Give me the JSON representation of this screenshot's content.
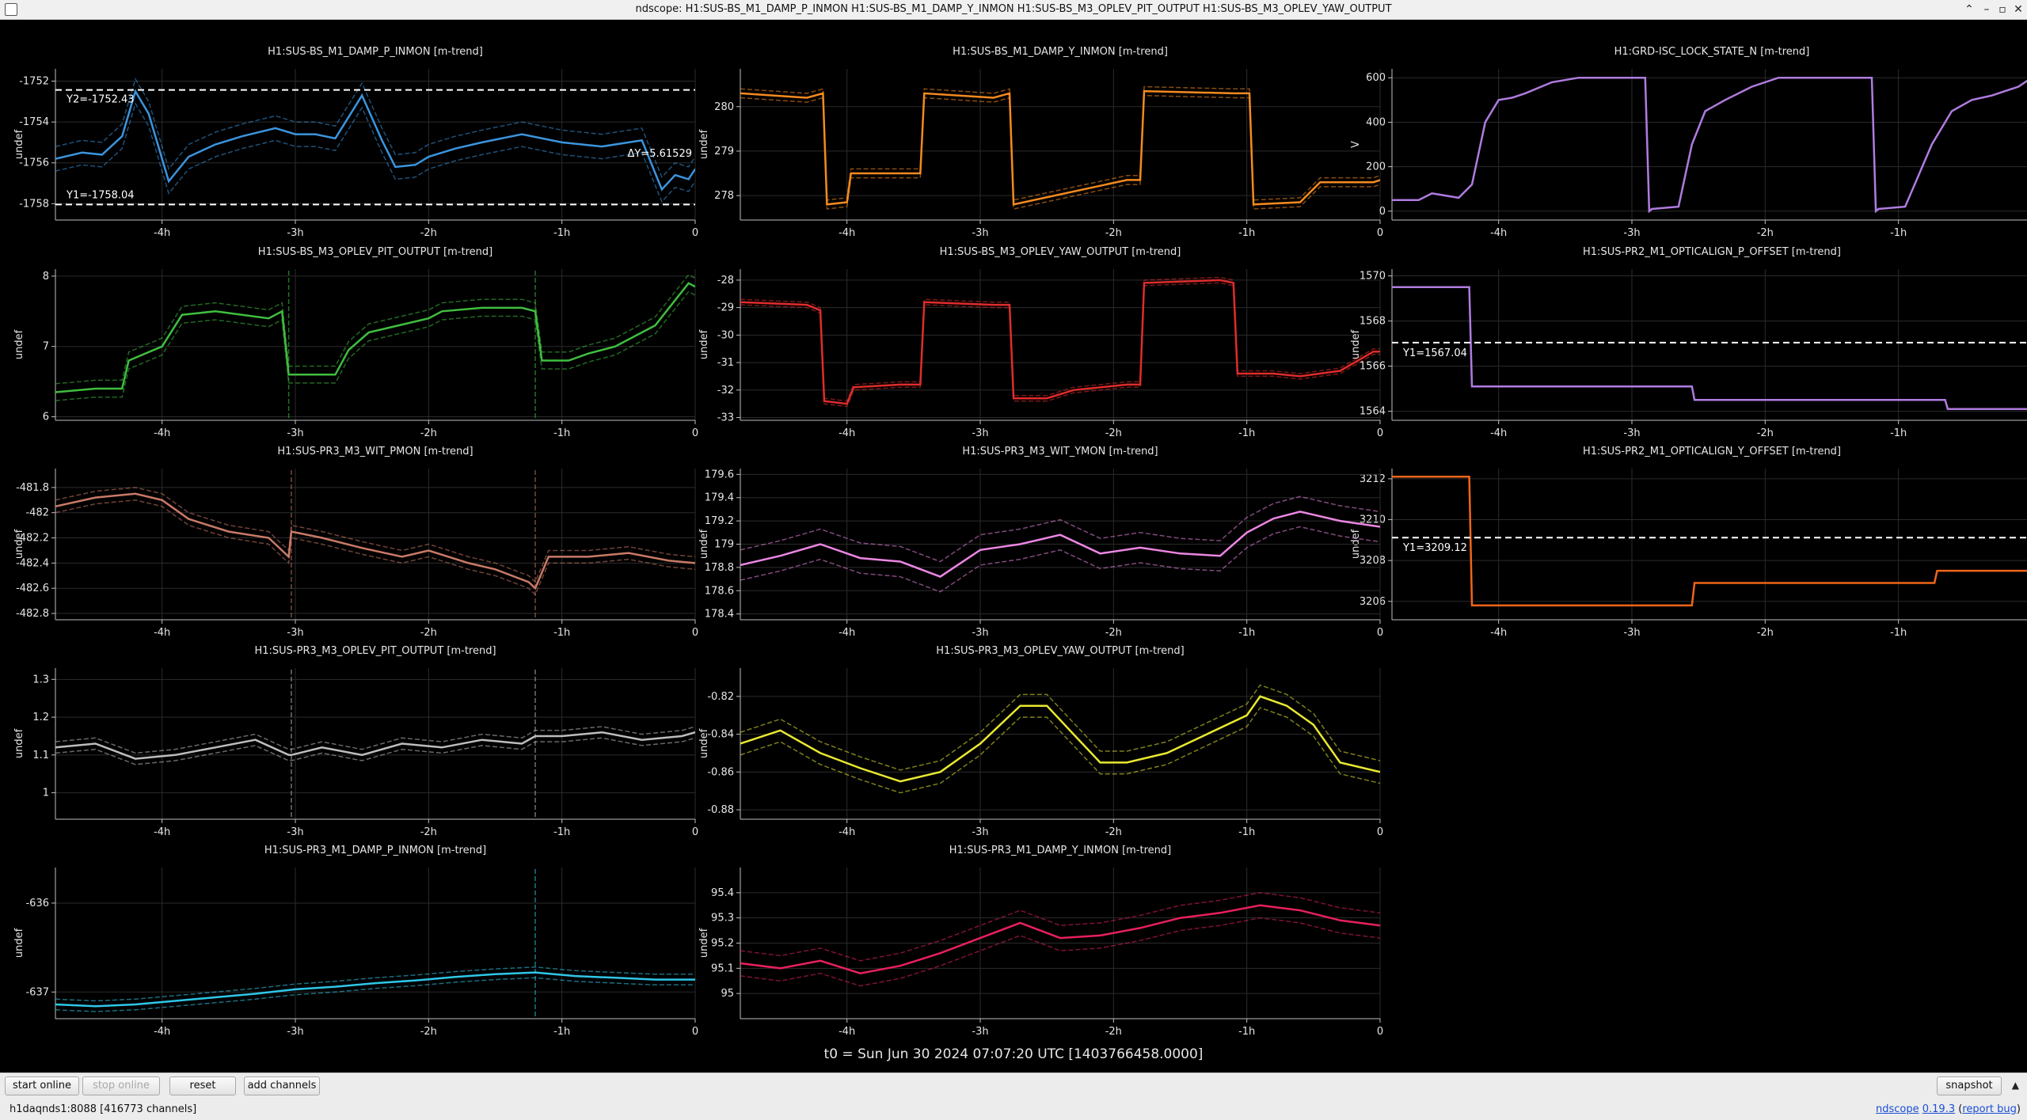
{
  "window": {
    "title": "ndscope: H1:SUS-BS_M1_DAMP_P_INMON H1:SUS-BS_M1_DAMP_Y_INMON H1:SUS-BS_M3_OPLEV_PIT_OUTPUT H1:SUS-BS_M3_OPLEV_YAW_OUTPUT",
    "buttons": {
      "shade": "⌃",
      "minimize": "–",
      "maximize": "▫",
      "close": "✕"
    }
  },
  "x_ticks": [
    "-4h",
    "-3h",
    "-2h",
    "-1h",
    "0"
  ],
  "colors": {
    "background": "#000000",
    "grid": "#2b2b2b",
    "axis": "#bfbfbf",
    "cursor": "#ffffff"
  },
  "t0_label": "t0 = Sun Jun 30 2024 07:07:20 UTC [1403766458.0000]",
  "controls": {
    "start_online": "start online",
    "stop_online": "stop online",
    "reset": "reset",
    "add_channels": "add channels",
    "snapshot": "snapshot",
    "menu_icon": "chevron-up-icon"
  },
  "status": {
    "server": "h1daqnds1:8088",
    "channels": "[416773 channels]",
    "app_name": "ndscope",
    "version": "0.19.3",
    "report_bug": "report bug"
  },
  "chart_data": [
    {
      "type": "line",
      "title": "H1:SUS-BS_M1_DAMP_P_INMON [m-trend]",
      "ylabel": "undef",
      "color": "#3b94dd",
      "ylim": [
        -1758.8,
        -1751.4
      ],
      "y_ticks": [
        -1752,
        -1754,
        -1756,
        -1758
      ],
      "x": [
        -4.8,
        -4.6,
        -4.45,
        -4.3,
        -4.2,
        -4.1,
        -3.95,
        -3.8,
        -3.6,
        -3.4,
        -3.15,
        -3.0,
        -2.85,
        -2.7,
        -2.5,
        -2.35,
        -2.25,
        -2.1,
        -2.0,
        -1.8,
        -1.6,
        -1.3,
        -1.0,
        -0.7,
        -0.4,
        -0.25,
        -0.15,
        -0.05,
        0
      ],
      "y": [
        -1755.8,
        -1755.5,
        -1755.6,
        -1754.7,
        -1752.5,
        -1753.6,
        -1756.9,
        -1755.7,
        -1755.1,
        -1754.7,
        -1754.3,
        -1754.6,
        -1754.6,
        -1754.8,
        -1752.7,
        -1754.9,
        -1756.2,
        -1756.1,
        -1755.7,
        -1755.3,
        -1755.0,
        -1754.6,
        -1755.0,
        -1755.2,
        -1754.9,
        -1757.3,
        -1756.6,
        -1756.8,
        -1756.3
      ],
      "band": 0.6,
      "cursors": [
        {
          "label": "Y2=-1752.43",
          "y": -1752.43
        },
        {
          "label": "Y1=-1758.04",
          "y": -1758.04
        },
        {
          "label": "ΔY=5.61529"
        }
      ]
    },
    {
      "type": "line",
      "title": "H1:SUS-BS_M1_DAMP_Y_INMON [m-trend]",
      "ylabel": "undef",
      "color": "#f58a1f",
      "ylim": [
        277.45,
        280.85
      ],
      "y_ticks": [
        280,
        279,
        278
      ],
      "x": [
        -4.8,
        -4.3,
        -4.18,
        -4.15,
        -4.0,
        -3.97,
        -3.6,
        -3.45,
        -3.42,
        -2.9,
        -2.78,
        -2.75,
        -1.9,
        -1.8,
        -1.77,
        -1.1,
        -0.98,
        -0.95,
        -0.6,
        -0.45,
        -0.42,
        -0.05,
        0
      ],
      "y": [
        280.3,
        280.2,
        280.3,
        277.8,
        277.85,
        278.5,
        278.5,
        278.5,
        280.3,
        280.2,
        280.3,
        277.8,
        278.35,
        278.35,
        280.35,
        280.3,
        280.3,
        277.8,
        277.85,
        278.3,
        278.3,
        278.3,
        278.35
      ],
      "band": 0.1
    },
    {
      "type": "line",
      "title": "H1:GRD-ISC_LOCK_STATE_N [m-trend]",
      "ylabel": "V",
      "color": "#b07ce0",
      "ylim": [
        -40,
        640
      ],
      "y_ticks": [
        600,
        400,
        200,
        0
      ],
      "x": [
        -4.8,
        -4.6,
        -4.5,
        -4.3,
        -4.2,
        -4.1,
        -4.0,
        -3.9,
        -3.8,
        -3.6,
        -3.4,
        -2.9,
        -2.87,
        -2.85,
        -2.65,
        -2.55,
        -2.45,
        -2.3,
        -2.1,
        -1.9,
        -1.2,
        -1.17,
        -1.15,
        -0.95,
        -0.75,
        -0.6,
        -0.45,
        -0.3,
        -0.1,
        0
      ],
      "y": [
        50,
        50,
        80,
        60,
        120,
        400,
        500,
        510,
        530,
        580,
        600,
        600,
        0,
        10,
        20,
        300,
        450,
        500,
        560,
        600,
        600,
        0,
        10,
        20,
        300,
        450,
        500,
        520,
        560,
        600
      ],
      "band": 0
    },
    {
      "type": "line",
      "title": "H1:SUS-BS_M3_OPLEV_PIT_OUTPUT [m-trend]",
      "ylabel": "undef",
      "color": "#3fbe3f",
      "ylim": [
        5.95,
        8.1
      ],
      "y_ticks": [
        8,
        7,
        6
      ],
      "x": [
        -4.8,
        -4.5,
        -4.3,
        -4.25,
        -4.0,
        -3.85,
        -3.6,
        -3.2,
        -3.1,
        -3.05,
        -2.85,
        -2.7,
        -2.6,
        -2.45,
        -2.0,
        -1.9,
        -1.6,
        -1.3,
        -1.2,
        -1.15,
        -0.95,
        -0.8,
        -0.6,
        -0.3,
        -0.05,
        0
      ],
      "y": [
        6.35,
        6.4,
        6.4,
        6.8,
        7.0,
        7.45,
        7.5,
        7.4,
        7.5,
        6.6,
        6.6,
        6.6,
        6.95,
        7.2,
        7.4,
        7.5,
        7.55,
        7.55,
        7.5,
        6.8,
        6.8,
        6.9,
        7.0,
        7.3,
        7.9,
        7.85
      ],
      "band": 0.12,
      "spikes": [
        -3.05,
        -1.2
      ]
    },
    {
      "type": "line",
      "title": "H1:SUS-BS_M3_OPLEV_YAW_OUTPUT [m-trend]",
      "ylabel": "undef",
      "color": "#e02c2c",
      "ylim": [
        -33.1,
        -27.6
      ],
      "y_ticks": [
        -28,
        -29,
        -30,
        -31,
        -32,
        -33
      ],
      "x": [
        -4.8,
        -4.3,
        -4.2,
        -4.17,
        -4.0,
        -3.95,
        -3.6,
        -3.45,
        -3.42,
        -2.9,
        -2.78,
        -2.75,
        -2.5,
        -2.3,
        -1.9,
        -1.8,
        -1.77,
        -1.2,
        -1.1,
        -1.07,
        -0.9,
        -0.8,
        -0.6,
        -0.3,
        -0.05,
        0
      ],
      "y": [
        -28.8,
        -28.9,
        -29.1,
        -32.4,
        -32.5,
        -31.9,
        -31.8,
        -31.8,
        -28.8,
        -28.9,
        -28.9,
        -32.3,
        -32.3,
        -32.0,
        -31.8,
        -31.8,
        -28.1,
        -28.0,
        -28.1,
        -31.4,
        -31.4,
        -31.4,
        -31.5,
        -31.3,
        -30.6,
        -30.6
      ],
      "band": 0.1
    },
    {
      "type": "line",
      "title": "H1:SUS-PR2_M1_OPTICALIGN_P_OFFSET [m-trend]",
      "ylabel": "undef",
      "color": "#b07ce0",
      "ylim": [
        1563.6,
        1570.3
      ],
      "y_ticks": [
        1570,
        1568,
        1566,
        1564
      ],
      "x": [
        -4.8,
        -4.22,
        -4.2,
        -2.55,
        -2.53,
        -0.65,
        -0.63,
        0
      ],
      "y": [
        1569.5,
        1569.5,
        1565.1,
        1565.1,
        1564.5,
        1564.5,
        1564.1,
        1564.1
      ],
      "band": 0,
      "cursors": [
        {
          "label": "Y1=1567.04",
          "y": 1567.04
        }
      ]
    },
    {
      "type": "line",
      "title": "H1:SUS-PR2_M1_OPTICALIGN_Y_OFFSET [m-trend]",
      "ylabel": "undef",
      "color": "#f0651a",
      "ylim": [
        3205.1,
        3212.5
      ],
      "y_ticks": [
        3212,
        3210,
        3208,
        3206
      ],
      "x": [
        -4.8,
        -4.22,
        -4.2,
        -2.55,
        -2.53,
        -0.73,
        -0.71,
        0
      ],
      "y": [
        3212.1,
        3212.1,
        3205.8,
        3205.8,
        3206.9,
        3206.9,
        3207.5,
        3207.5
      ],
      "band": 0,
      "cursors": [
        {
          "label": "Y1=3209.12",
          "y": 3209.12
        }
      ]
    },
    {
      "type": "line",
      "title": "H1:SUS-PR3_M3_WIT_PMON [m-trend]",
      "ylabel": "undef",
      "color": "#c97a68",
      "ylim": [
        -482.85,
        -481.65
      ],
      "y_ticks": [
        -481.8,
        -482,
        -482.2,
        -482.4,
        -482.6,
        -482.8
      ],
      "x": [
        -4.8,
        -4.5,
        -4.2,
        -4.0,
        -3.8,
        -3.5,
        -3.2,
        -3.05,
        -3.03,
        -2.8,
        -2.5,
        -2.2,
        -2.0,
        -1.7,
        -1.5,
        -1.25,
        -1.2,
        -1.1,
        -0.8,
        -0.5,
        -0.2,
        0
      ],
      "y": [
        -481.95,
        -481.88,
        -481.85,
        -481.9,
        -482.05,
        -482.15,
        -482.2,
        -482.35,
        -482.15,
        -482.2,
        -482.28,
        -482.35,
        -482.3,
        -482.4,
        -482.45,
        -482.55,
        -482.6,
        -482.35,
        -482.35,
        -482.32,
        -482.38,
        -482.4
      ],
      "band": 0.05,
      "spikes": [
        -3.03,
        -1.2
      ]
    },
    {
      "type": "line",
      "title": "H1:SUS-PR3_M3_WIT_YMON [m-trend]",
      "ylabel": "undef",
      "color": "#ec86e3",
      "ylim": [
        178.35,
        179.65
      ],
      "y_ticks": [
        179.6,
        179.4,
        179.2,
        179,
        178.8,
        178.6,
        178.4
      ],
      "x": [
        -4.8,
        -4.5,
        -4.2,
        -3.9,
        -3.6,
        -3.3,
        -3.0,
        -2.7,
        -2.4,
        -2.1,
        -1.8,
        -1.5,
        -1.2,
        -1.0,
        -0.8,
        -0.6,
        -0.3,
        0
      ],
      "y": [
        178.82,
        178.9,
        179.0,
        178.88,
        178.85,
        178.72,
        178.95,
        179.0,
        179.08,
        178.92,
        178.97,
        178.92,
        178.9,
        179.1,
        179.22,
        179.28,
        179.2,
        179.15
      ],
      "band": 0.13
    },
    {
      "type": "line",
      "title": "H1:SUS-PR3_M3_OPLEV_PIT_OUTPUT [m-trend]",
      "ylabel": "undef",
      "color": "#bdbdbd",
      "ylim": [
        0.93,
        1.33
      ],
      "y_ticks": [
        1.3,
        1.2,
        1.1,
        1.0
      ],
      "x": [
        -4.8,
        -4.5,
        -4.2,
        -3.9,
        -3.6,
        -3.3,
        -3.05,
        -3.03,
        -2.8,
        -2.5,
        -2.2,
        -1.9,
        -1.6,
        -1.3,
        -1.2,
        -1.0,
        -0.7,
        -0.4,
        -0.1,
        0
      ],
      "y": [
        1.12,
        1.13,
        1.09,
        1.1,
        1.12,
        1.14,
        1.1,
        1.1,
        1.12,
        1.1,
        1.13,
        1.12,
        1.14,
        1.13,
        1.15,
        1.15,
        1.16,
        1.14,
        1.15,
        1.16
      ],
      "band": 0.015,
      "spikes": [
        -3.03,
        -1.2
      ]
    },
    {
      "type": "line",
      "title": "H1:SUS-PR3_M3_OPLEV_YAW_OUTPUT [m-trend]",
      "ylabel": "undef",
      "color": "#e8e831",
      "ylim": [
        -0.885,
        -0.805
      ],
      "y_ticks": [
        -0.82,
        -0.84,
        -0.86,
        -0.88
      ],
      "x": [
        -4.8,
        -4.5,
        -4.2,
        -3.9,
        -3.6,
        -3.3,
        -3.0,
        -2.7,
        -2.5,
        -2.3,
        -2.1,
        -1.9,
        -1.6,
        -1.3,
        -1.0,
        -0.9,
        -0.7,
        -0.5,
        -0.3,
        0
      ],
      "y": [
        -0.845,
        -0.838,
        -0.85,
        -0.858,
        -0.865,
        -0.86,
        -0.845,
        -0.825,
        -0.825,
        -0.84,
        -0.855,
        -0.855,
        -0.85,
        -0.84,
        -0.83,
        -0.82,
        -0.825,
        -0.835,
        -0.855,
        -0.86
      ],
      "band": 0.006
    },
    {
      "type": "line",
      "title": "H1:SUS-PR3_M1_DAMP_P_INMON [m-trend]",
      "ylabel": "undef",
      "color": "#2fc7e8",
      "ylim": [
        -637.3,
        -635.6
      ],
      "y_ticks": [
        -636,
        -637
      ],
      "x": [
        -4.8,
        -4.5,
        -4.2,
        -3.9,
        -3.6,
        -3.3,
        -3.0,
        -2.7,
        -2.4,
        -2.1,
        -1.8,
        -1.5,
        -1.2,
        -0.9,
        -0.6,
        -0.3,
        0
      ],
      "y": [
        -637.14,
        -637.16,
        -637.14,
        -637.1,
        -637.06,
        -637.02,
        -636.97,
        -636.94,
        -636.9,
        -636.87,
        -636.83,
        -636.8,
        -636.78,
        -636.82,
        -636.84,
        -636.86,
        -636.86
      ],
      "band": 0.06,
      "spikes": [
        -1.2
      ]
    },
    {
      "type": "line",
      "title": "H1:SUS-PR3_M1_DAMP_Y_INMON [m-trend]",
      "ylabel": "undef",
      "color": "#e8205d",
      "ylim": [
        94.9,
        95.5
      ],
      "y_ticks": [
        95.4,
        95.3,
        95.2,
        95.1,
        95
      ],
      "x": [
        -4.8,
        -4.5,
        -4.2,
        -3.9,
        -3.6,
        -3.3,
        -3.0,
        -2.7,
        -2.4,
        -2.1,
        -1.8,
        -1.5,
        -1.2,
        -0.9,
        -0.6,
        -0.3,
        0
      ],
      "y": [
        95.12,
        95.1,
        95.13,
        95.08,
        95.11,
        95.16,
        95.22,
        95.28,
        95.22,
        95.23,
        95.26,
        95.3,
        95.32,
        95.35,
        95.33,
        95.29,
        95.27
      ],
      "band": 0.05
    }
  ]
}
